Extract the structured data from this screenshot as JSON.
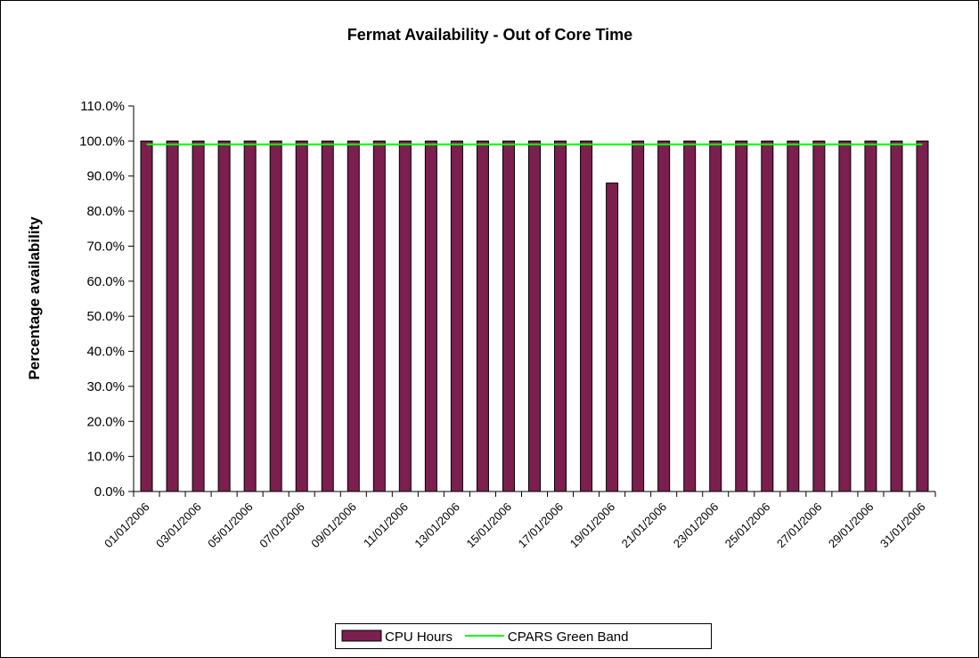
{
  "chart_data": {
    "type": "bar",
    "title": "Fermat Availability - Out of Core Time",
    "y_axis_label": "Percentage availability",
    "categories": [
      "01/01/2006",
      null,
      "03/01/2006",
      null,
      "05/01/2006",
      null,
      "07/01/2006",
      null,
      "09/01/2006",
      null,
      "11/01/2006",
      null,
      "13/01/2006",
      null,
      "15/01/2006",
      null,
      "17/01/2006",
      null,
      "19/01/2006",
      null,
      "21/01/2006",
      null,
      "23/01/2006",
      null,
      "25/01/2006",
      null,
      "27/01/2006",
      null,
      "29/01/2006",
      null,
      "31/01/2006"
    ],
    "series": [
      {
        "name": "CPU Hours",
        "type": "bar",
        "color": "#7b1f4e",
        "values": [
          100,
          100,
          100,
          100,
          100,
          100,
          100,
          100,
          100,
          100,
          100,
          100,
          100,
          100,
          100,
          100,
          100,
          100,
          88,
          100,
          100,
          100,
          100,
          100,
          100,
          100,
          100,
          100,
          100,
          100,
          100
        ]
      },
      {
        "name": "CPARS Green Band",
        "type": "line",
        "color": "#00ff00",
        "values": [
          99,
          99,
          99,
          99,
          99,
          99,
          99,
          99,
          99,
          99,
          99,
          99,
          99,
          99,
          99,
          99,
          99,
          99,
          99,
          99,
          99,
          99,
          99,
          99,
          99,
          99,
          99,
          99,
          99,
          99,
          99
        ]
      }
    ],
    "ylim": [
      0,
      110
    ],
    "yticks": [
      {
        "value": 0,
        "label": "0.0%"
      },
      {
        "value": 10,
        "label": "10.0%"
      },
      {
        "value": 20,
        "label": "20.0%"
      },
      {
        "value": 30,
        "label": "30.0%"
      },
      {
        "value": 40,
        "label": "40.0%"
      },
      {
        "value": 50,
        "label": "50.0%"
      },
      {
        "value": 60,
        "label": "60.0%"
      },
      {
        "value": 70,
        "label": "70.0%"
      },
      {
        "value": 80,
        "label": "80.0%"
      },
      {
        "value": 90,
        "label": "90.0%"
      },
      {
        "value": 100,
        "label": "100.0%"
      },
      {
        "value": 110,
        "label": "110.0%"
      }
    ],
    "legend": "bottom"
  }
}
